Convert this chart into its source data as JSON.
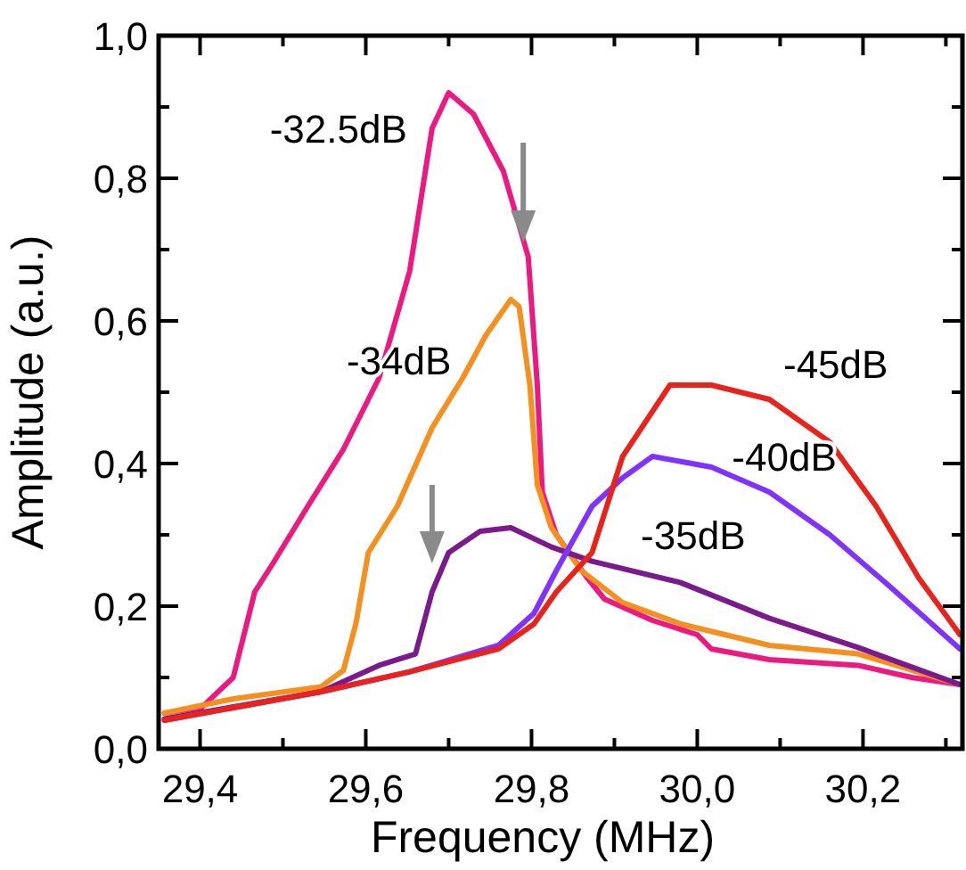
{
  "chart_data": {
    "type": "line",
    "xlabel": "Frequency (MHz)",
    "ylabel": "Amplitude (a.u.)",
    "xlim": [
      29.35,
      30.32
    ],
    "ylim": [
      0,
      1.0
    ],
    "xticks": [
      {
        "value": 29.4,
        "label": "29,4"
      },
      {
        "value": 29.5,
        "label": null
      },
      {
        "value": 29.6,
        "label": "29,6"
      },
      {
        "value": 29.7,
        "label": null
      },
      {
        "value": 29.8,
        "label": "29,8"
      },
      {
        "value": 29.9,
        "label": null
      },
      {
        "value": 30.0,
        "label": "30,0"
      },
      {
        "value": 30.1,
        "label": null
      },
      {
        "value": 30.2,
        "label": "30,2"
      },
      {
        "value": 30.3,
        "label": null
      }
    ],
    "yticks": [
      {
        "value": 0,
        "label": "0,0"
      },
      {
        "value": 0.1,
        "label": null
      },
      {
        "value": 0.2,
        "label": "0,2"
      },
      {
        "value": 0.3,
        "label": null
      },
      {
        "value": 0.4,
        "label": "0,4"
      },
      {
        "value": 0.5,
        "label": null
      },
      {
        "value": 0.6,
        "label": "0,6"
      },
      {
        "value": 0.7,
        "label": null
      },
      {
        "value": 0.8,
        "label": "0,8"
      },
      {
        "value": 0.9,
        "label": null
      },
      {
        "value": 1.0,
        "label": "1,0"
      }
    ],
    "grid": false,
    "marker": "none",
    "line_style": "solid",
    "series": [
      {
        "name": "-32.5dB",
        "color": "#ec1a80",
        "x": [
          29.357,
          29.402,
          29.44,
          29.466,
          29.488,
          29.53,
          29.573,
          29.616,
          29.653,
          29.68,
          29.7,
          29.73,
          29.766,
          29.796,
          29.807,
          29.813,
          29.83,
          29.867,
          29.888,
          29.946,
          30.0,
          30.017,
          30.087,
          30.194,
          30.259,
          30.317
        ],
        "values": [
          0.05,
          0.058,
          0.1,
          0.22,
          0.26,
          0.34,
          0.42,
          0.52,
          0.67,
          0.87,
          0.92,
          0.89,
          0.81,
          0.69,
          0.51,
          0.36,
          0.3,
          0.24,
          0.21,
          0.18,
          0.16,
          0.14,
          0.125,
          0.117,
          0.1,
          0.09
        ]
      },
      {
        "name": "-34dB",
        "color": "#f5901e",
        "x": [
          29.357,
          29.44,
          29.546,
          29.573,
          29.588,
          29.603,
          29.638,
          29.68,
          29.717,
          29.745,
          29.775,
          29.785,
          29.798,
          29.807,
          29.824,
          29.86,
          29.91,
          29.98,
          30.087,
          30.194,
          30.317
        ],
        "values": [
          0.05,
          0.07,
          0.087,
          0.11,
          0.175,
          0.275,
          0.34,
          0.45,
          0.52,
          0.58,
          0.63,
          0.62,
          0.51,
          0.37,
          0.31,
          0.25,
          0.205,
          0.175,
          0.145,
          0.133,
          0.09
        ]
      },
      {
        "name": "-35dB",
        "color": "#7a1a8c",
        "x": [
          29.357,
          29.546,
          29.616,
          29.66,
          29.68,
          29.7,
          29.738,
          29.775,
          29.824,
          29.873,
          29.98,
          30.087,
          30.194,
          30.317
        ],
        "values": [
          0.042,
          0.08,
          0.117,
          0.133,
          0.22,
          0.275,
          0.305,
          0.31,
          0.283,
          0.263,
          0.233,
          0.183,
          0.142,
          0.09
        ]
      },
      {
        "name": "-40dB",
        "color": "#8033ff",
        "x": [
          29.357,
          29.546,
          29.653,
          29.76,
          29.803,
          29.83,
          29.873,
          29.91,
          29.946,
          30.017,
          30.087,
          30.16,
          30.23,
          30.317
        ],
        "values": [
          0.04,
          0.08,
          0.108,
          0.145,
          0.19,
          0.25,
          0.34,
          0.38,
          0.41,
          0.395,
          0.36,
          0.3,
          0.23,
          0.14
        ]
      },
      {
        "name": "-45dB",
        "color": "#e8231c",
        "x": [
          29.357,
          29.546,
          29.653,
          29.76,
          29.803,
          29.83,
          29.873,
          29.91,
          29.967,
          30.017,
          30.087,
          30.16,
          30.216,
          30.267,
          30.317
        ],
        "values": [
          0.04,
          0.08,
          0.108,
          0.14,
          0.175,
          0.22,
          0.275,
          0.41,
          0.51,
          0.51,
          0.49,
          0.43,
          0.34,
          0.24,
          0.16
        ]
      }
    ]
  }
}
